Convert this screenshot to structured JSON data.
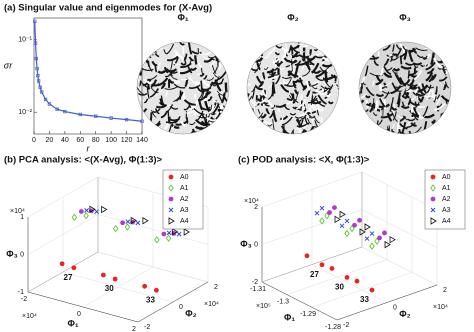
{
  "chart_data": [
    {
      "type": "line",
      "title": "(a) Singular value and eigenmodes for (X-Avg)",
      "x_label": "r",
      "y_label": "σr",
      "x": [
        1,
        2,
        3,
        4,
        5,
        6,
        8,
        10,
        15,
        20,
        30,
        40,
        60,
        80,
        100,
        120,
        140
      ],
      "values": [
        0.18,
        0.09,
        0.055,
        0.04,
        0.032,
        0.027,
        0.022,
        0.019,
        0.015,
        0.013,
        0.011,
        0.0102,
        0.0093,
        0.0088,
        0.0083,
        0.0079,
        0.0075
      ],
      "color": "#3f5fcf",
      "log_y": true,
      "xlim": [
        0,
        140
      ],
      "xticks": [
        0,
        20,
        40,
        60,
        80,
        100,
        120,
        140
      ],
      "ylim": [
        0.005,
        0.2
      ],
      "yticks": [
        {
          "value": 0.1,
          "label": "10⁻¹"
        },
        {
          "value": 0.01,
          "label": "10⁻²"
        }
      ]
    },
    {
      "type": "scatter3d",
      "title": "(b) PCA analysis: <(X-Avg), Φ(1:3)>",
      "x_label": "Φ₁",
      "y_label": "Φ₂",
      "z_label": "Φ₃",
      "x_exponent": "×10⁴",
      "y_exponent": "×10⁴",
      "z_exponent": "×10⁴",
      "xlim": [
        -2,
        2
      ],
      "xticks": [
        -2,
        0,
        2
      ],
      "ylim": [
        -2,
        2
      ],
      "yticks": [
        -2,
        0,
        2
      ],
      "zlim": [
        -1,
        1
      ],
      "zticks": [
        -1,
        0,
        1
      ],
      "annotations": [
        "27",
        "30",
        "33"
      ],
      "series": [
        {
          "name": "A0",
          "color": "#e8251f",
          "marker": "circle",
          "x": [
            -1.65,
            -1.35,
            -0.15,
            0.15,
            1.35,
            1.65
          ],
          "y": [
            -0.6,
            -0.4,
            -0.6,
            -0.4,
            -0.6,
            -0.4
          ],
          "z": [
            -0.55,
            -0.65,
            -0.55,
            -0.65,
            -0.55,
            -0.65
          ]
        },
        {
          "name": "A1",
          "color": "#4cc21c",
          "marker": "diamond",
          "x": [
            -1.65,
            -1.35,
            -0.15,
            0.15,
            1.35,
            1.65
          ],
          "y": [
            0.1,
            0.3,
            0.1,
            0.3,
            0.1,
            0.3
          ],
          "z": [
            0.5,
            0.55,
            0.5,
            0.55,
            0.5,
            0.55
          ]
        },
        {
          "name": "A2",
          "color": "#b03ad0",
          "marker": "circle",
          "x": [
            -1.65,
            -1.35,
            -0.15,
            0.15,
            1.35,
            1.65
          ],
          "y": [
            0.5,
            0.6,
            0.5,
            0.6,
            0.5,
            0.6
          ],
          "z": [
            0.55,
            0.6,
            0.55,
            0.6,
            0.55,
            0.6
          ]
        },
        {
          "name": "A3",
          "color": "#2a3fd6",
          "marker": "x",
          "x": [
            -1.65,
            -1.35,
            -0.15,
            0.15,
            1.35,
            1.65
          ],
          "y": [
            0.8,
            0.9,
            0.8,
            0.9,
            0.8,
            0.9
          ],
          "z": [
            0.5,
            0.5,
            0.5,
            0.5,
            0.5,
            0.5
          ]
        },
        {
          "name": "A4",
          "color": "#111111",
          "marker": "triangle",
          "x": [
            -1.65,
            -1.35,
            -0.15,
            0.15,
            1.35,
            1.65
          ],
          "y": [
            1.1,
            1.3,
            1.1,
            1.3,
            1.1,
            1.3
          ],
          "z": [
            0.45,
            0.45,
            0.45,
            0.45,
            0.45,
            0.45
          ]
        }
      ]
    },
    {
      "type": "scatter3d",
      "title": "(c) POD analysis: <X, Φ(1:3)>",
      "x_label": "Φ₁",
      "y_label": "Φ₂",
      "z_label": "Φ₃",
      "x_exponent": "×10⁵",
      "y_exponent": "×10⁴",
      "z_exponent": "×10⁴",
      "xlim": [
        -1.31,
        -1.28
      ],
      "xticks": [
        -1.31,
        -1.3,
        -1.29,
        -1.28
      ],
      "ylim": [
        -2,
        2
      ],
      "yticks": [
        -2,
        0,
        2
      ],
      "zlim": [
        -2,
        2
      ],
      "zticks": [
        -2,
        0,
        2
      ],
      "annotations": [
        "27",
        "30",
        "33"
      ],
      "series": [
        {
          "name": "A0",
          "color": "#e8251f",
          "marker": "circle",
          "x": [
            -1.307,
            -1.303,
            -1.297,
            -1.293,
            -1.287,
            -1.283
          ],
          "y": [
            -0.5,
            -0.3,
            -0.5,
            -0.3,
            -0.5,
            -0.3
          ],
          "z": [
            -1.1,
            -1.4,
            -1.1,
            -1.4,
            -1.1,
            -1.4
          ]
        },
        {
          "name": "A1",
          "color": "#4cc21c",
          "marker": "diamond",
          "x": [
            -1.306,
            -1.304,
            -1.296,
            -1.294,
            -1.286,
            -1.284
          ],
          "y": [
            0,
            0,
            0,
            0,
            0,
            0
          ],
          "z": [
            0.6,
            1.0,
            0.6,
            1.0,
            0.6,
            1.0
          ]
        },
        {
          "name": "A2",
          "color": "#b03ad0",
          "marker": "circle",
          "x": [
            -1.306,
            -1.304,
            -1.296,
            -1.294,
            -1.286,
            -1.284
          ],
          "y": [
            0.3,
            0.3,
            0.3,
            0.3,
            0.3,
            0.3
          ],
          "z": [
            0.9,
            1.3,
            0.9,
            1.3,
            0.9,
            1.3
          ]
        },
        {
          "name": "A3",
          "color": "#2a3fd6",
          "marker": "x",
          "x": [
            -1.306,
            -1.304,
            -1.296,
            -1.294,
            -1.286,
            -1.284
          ],
          "y": [
            -0.2,
            -0.2,
            -0.2,
            -0.2,
            -0.2,
            -0.2
          ],
          "z": [
            1.1,
            1.5,
            1.1,
            1.5,
            1.1,
            1.5
          ]
        },
        {
          "name": "A4",
          "color": "#111111",
          "marker": "triangle",
          "x": [
            -1.306,
            -1.304,
            -1.296,
            -1.294,
            -1.286,
            -1.284
          ],
          "y": [
            0.6,
            0.6,
            0.6,
            0.6,
            0.6,
            0.6
          ],
          "z": [
            0.4,
            0.8,
            0.4,
            0.8,
            0.4,
            0.8
          ]
        }
      ]
    }
  ],
  "eigenmodes": {
    "labels": [
      "Φ₁",
      "Φ₂",
      "Φ₃"
    ]
  }
}
